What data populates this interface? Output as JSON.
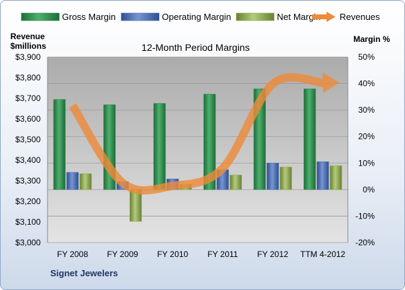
{
  "chart_data": {
    "type": "bar",
    "title": "12-Month Period Margins",
    "company": "Signet Jewelers",
    "categories": [
      "FY 2008",
      "FY 2009",
      "FY 2010",
      "FY 2011",
      "FY 2012",
      "TTM 4-2012"
    ],
    "left_axis": {
      "label_line1": "Revenue",
      "label_line2": "$millions",
      "range": [
        3000,
        3900
      ],
      "ticks": [
        "$3,000",
        "$3,100",
        "$3,200",
        "$3,300",
        "$3,400",
        "$3,500",
        "$3,600",
        "$3,700",
        "$3,800",
        "$3,900"
      ]
    },
    "right_axis": {
      "label": "Margin %",
      "range": [
        -20,
        50
      ],
      "ticks": [
        "-20%",
        "-10%",
        "0%",
        "10%",
        "20%",
        "30%",
        "40%",
        "50%"
      ]
    },
    "series": [
      {
        "name": "Gross Margin",
        "type": "bar",
        "axis": "right",
        "color": "#2e8b4e",
        "values": [
          34,
          32,
          32.5,
          36,
          38,
          38
        ]
      },
      {
        "name": "Operating Margin",
        "type": "bar",
        "axis": "right",
        "color": "#4a6fb5",
        "values": [
          6.5,
          3,
          4,
          7.5,
          10,
          10.5
        ]
      },
      {
        "name": "Net Margin",
        "type": "bar",
        "axis": "right",
        "color": "#8fae4e",
        "values": [
          6,
          -12,
          2,
          5.5,
          8.5,
          9
        ]
      },
      {
        "name": "Revenues",
        "type": "line",
        "axis": "left",
        "color": "#ed8b3a",
        "values": [
          3665,
          3290,
          3275,
          3360,
          3770,
          3775
        ]
      }
    ],
    "legend_position": "top",
    "grid": true
  }
}
